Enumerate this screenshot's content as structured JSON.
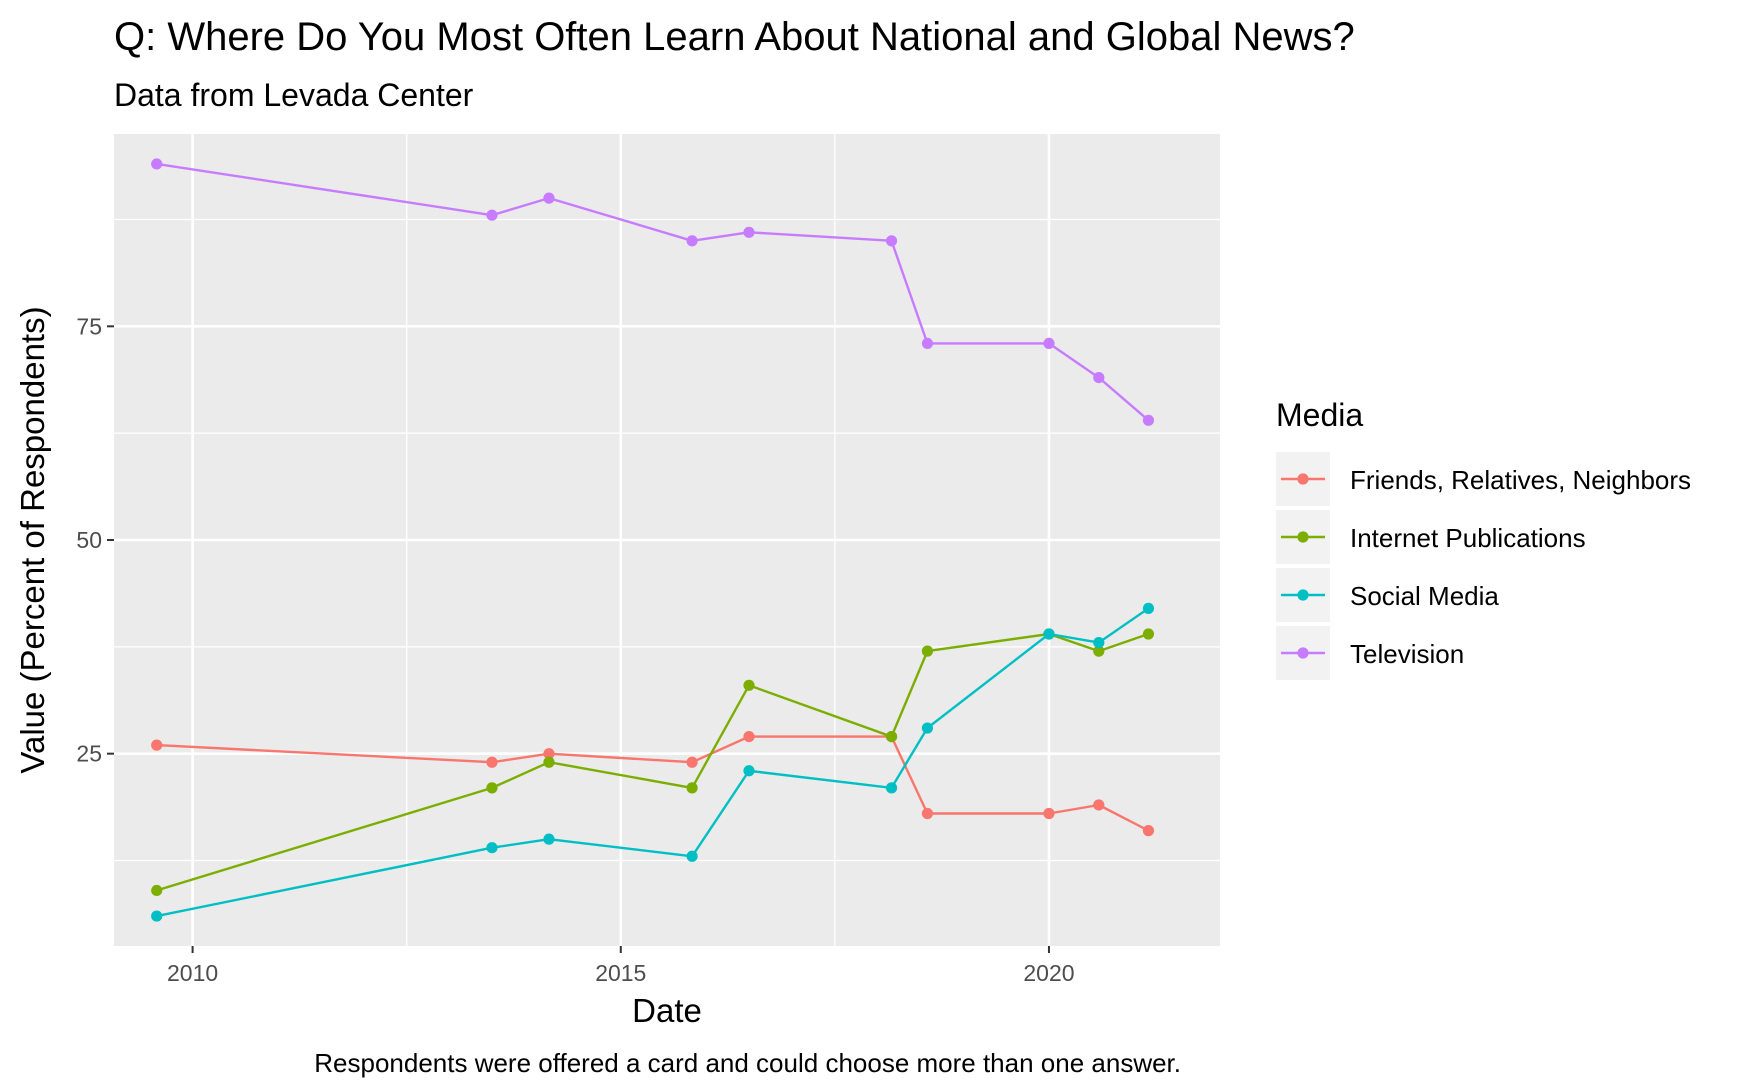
{
  "chart_data": {
    "type": "line",
    "title": "Q: Where Do You Most Often Learn About National and Global News?",
    "subtitle": "Data from Levada Center",
    "xlabel": "Date",
    "ylabel": "Value (Percent of Respondents)",
    "caption": "Respondents were offered a card and could choose more than one answer.",
    "legend_title": "Media",
    "legend_position": "right",
    "grid": true,
    "xlim": [
      "2009-01-31",
      "2021-12-31"
    ],
    "ylim": [
      2.5,
      97.5
    ],
    "x_ticks": [
      {
        "value": "2010-01-01",
        "label": "2010"
      },
      {
        "value": "2015-01-01",
        "label": "2015"
      },
      {
        "value": "2020-01-01",
        "label": "2020"
      }
    ],
    "y_ticks": [
      {
        "value": 25,
        "label": "25"
      },
      {
        "value": 50,
        "label": "50"
      },
      {
        "value": 75,
        "label": "75"
      }
    ],
    "x": [
      "2009-08-01",
      "2013-07-01",
      "2014-03-01",
      "2015-11-01",
      "2016-07-01",
      "2018-03-01",
      "2018-08-01",
      "2020-01-01",
      "2020-08-01",
      "2021-03-01"
    ],
    "series": [
      {
        "name": "Friends, Relatives, Neighbors",
        "color": "#F8766D",
        "values": [
          26,
          24,
          25,
          24,
          27,
          27,
          18,
          18,
          19,
          16
        ]
      },
      {
        "name": "Internet Publications",
        "color": "#7CAE00",
        "values": [
          9,
          21,
          24,
          21,
          33,
          27,
          37,
          39,
          37,
          39
        ]
      },
      {
        "name": "Social Media",
        "color": "#00BFC4",
        "values": [
          6,
          14,
          15,
          13,
          23,
          21,
          28,
          39,
          38,
          42
        ]
      },
      {
        "name": "Television",
        "color": "#C77CFF",
        "values": [
          94,
          88,
          90,
          85,
          86,
          85,
          73,
          73,
          69,
          64
        ]
      }
    ]
  }
}
